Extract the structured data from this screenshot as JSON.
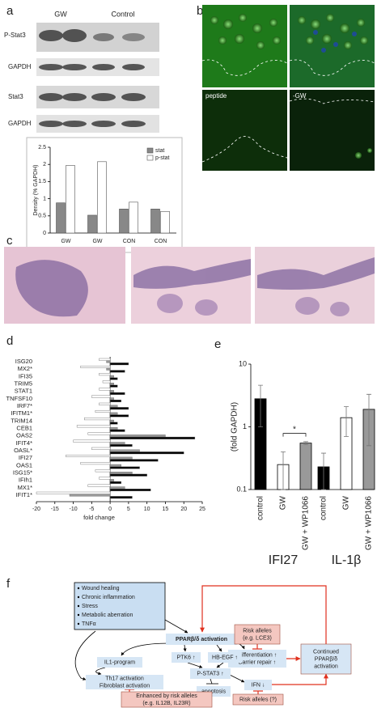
{
  "panel_labels": [
    "a",
    "b",
    "c",
    "d",
    "e",
    "f"
  ],
  "blot": {
    "groups": [
      "GW",
      "Control"
    ],
    "rows": [
      "P-Stat3",
      "GAPDH",
      "Stat3",
      "GAPDH"
    ]
  },
  "images": {
    "labels": [
      "peptide",
      "-GW"
    ]
  },
  "chart_data": [
    {
      "type": "bar",
      "ylabel": "Density (% GAPDH)",
      "categories": [
        "GW",
        "GW",
        "CON",
        "CON"
      ],
      "series": [
        {
          "name": "stat",
          "color": "#888888",
          "values": [
            0.88,
            0.52,
            0.7,
            0.7
          ]
        },
        {
          "name": "p-stat",
          "color": "#ffffff",
          "values": [
            1.97,
            2.08,
            0.9,
            0.63
          ]
        }
      ],
      "ylim": [
        0,
        2.5
      ],
      "yticks": [
        0,
        0.5,
        1,
        1.5,
        2,
        2.5
      ],
      "legend": "upper-right"
    },
    {
      "type": "hbar",
      "xlabel": "fold change",
      "categories": [
        "ISG20",
        "MX2*",
        "IFI35",
        "TRIM5",
        "STAT1",
        "TNFSF10",
        "IRF7*",
        "IFITM1*",
        "TRIM14",
        "CEB1",
        "OAS2",
        "IFIT4*",
        "OASL*",
        "IFI27",
        "OAS1",
        "ISG15*",
        "IFIh1",
        "MX1*",
        "IFIT1*"
      ],
      "series": [
        {
          "color": "#ffffff",
          "values": [
            -3,
            -8,
            -3,
            -2,
            -3,
            -5,
            -3,
            -4,
            -7,
            -9,
            -6,
            -10,
            -5,
            -12,
            -8,
            -4,
            -3,
            -6,
            -20
          ]
        },
        {
          "color": "#999999",
          "values": [
            -1,
            -1,
            1,
            1,
            1,
            1,
            2,
            2,
            1,
            2,
            15,
            4,
            8,
            6,
            3,
            6,
            1,
            4,
            -11
          ]
        },
        {
          "color": "#000000",
          "values": [
            5,
            4,
            2,
            2,
            4,
            3,
            5,
            5,
            2,
            4,
            23,
            6,
            20,
            13,
            8,
            10,
            3,
            11,
            6
          ]
        }
      ],
      "xlim": [
        -20,
        25
      ],
      "xticks": [
        -20,
        -15,
        -10,
        -5,
        0,
        5,
        10,
        15,
        20,
        25
      ]
    },
    {
      "type": "bar",
      "log_scale": true,
      "ylabel": "(fold GAPDH)",
      "categories": [
        "control",
        "GW",
        "GW + WP1066"
      ],
      "colors": [
        "#000000",
        "#ffffff",
        "#999999"
      ],
      "series": [
        {
          "name": "IFI27",
          "values": [
            2.8,
            0.25,
            0.55
          ],
          "errors": [
            1.8,
            0.15,
            0.03
          ]
        },
        {
          "name": "IL-1β",
          "values": [
            0.23,
            1.4,
            1.9
          ],
          "errors": [
            0.15,
            0.7,
            1.4
          ]
        }
      ],
      "ylim": [
        0.1,
        10
      ],
      "yticks": [
        0.1,
        1,
        10
      ],
      "annotation": "*"
    }
  ],
  "diagram": {
    "factors": [
      "Wound healing",
      "Chronic inflammation",
      "Stress",
      "Metabolic aberration",
      "TNFα"
    ],
    "nodes": [
      {
        "lines": [
          "PPARβ/δ activation"
        ]
      },
      {
        "lines": [
          "Risk alleles",
          "(e.g. LCE3)"
        ]
      },
      {
        "lines": [
          "Differentiation ↑",
          "Barrier repair ↑"
        ]
      },
      {
        "lines": [
          "Continued",
          "PPARβ/δ",
          "activation"
        ]
      },
      {
        "lines": [
          "IL1-program"
        ]
      },
      {
        "lines": [
          "PTK6 ↑"
        ]
      },
      {
        "lines": [
          "HB-EGF ↑"
        ]
      },
      {
        "lines": [
          "P-STAT3 ↑"
        ]
      },
      {
        "lines": [
          "apoptosis"
        ]
      },
      {
        "lines": [
          "IFN ↓"
        ]
      },
      {
        "lines": [
          "Th17 activation",
          "Fibroblast activation"
        ]
      },
      {
        "lines": [
          "Enhanced by risk alleles",
          "(e.g. IL12B, IL23R)"
        ]
      },
      {
        "lines": [
          "Risk alleles (?)"
        ]
      }
    ]
  }
}
